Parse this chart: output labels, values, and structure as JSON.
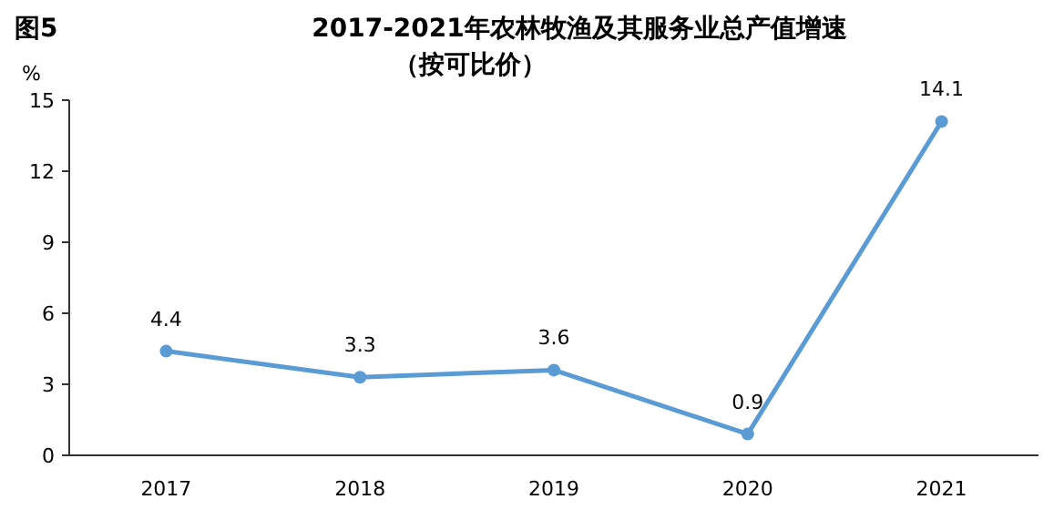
{
  "chart_data": {
    "type": "line",
    "title": "2017-2021年农林牧渔及其服务业总产值增速",
    "subtitle": "（按可比价）",
    "annotations": [
      "图5"
    ],
    "ylabel": "%",
    "categories": [
      "2017",
      "2018",
      "2019",
      "2020",
      "2021"
    ],
    "series": [
      {
        "color": "#5b9bd5",
        "values": [
          4.4,
          3.3,
          3.6,
          0.9,
          14.1
        ]
      }
    ],
    "ylim": [
      0,
      15
    ],
    "yticks": [
      0,
      3,
      6,
      9,
      12,
      15
    ],
    "data_labels": true,
    "marker": "circle",
    "grid": false
  }
}
